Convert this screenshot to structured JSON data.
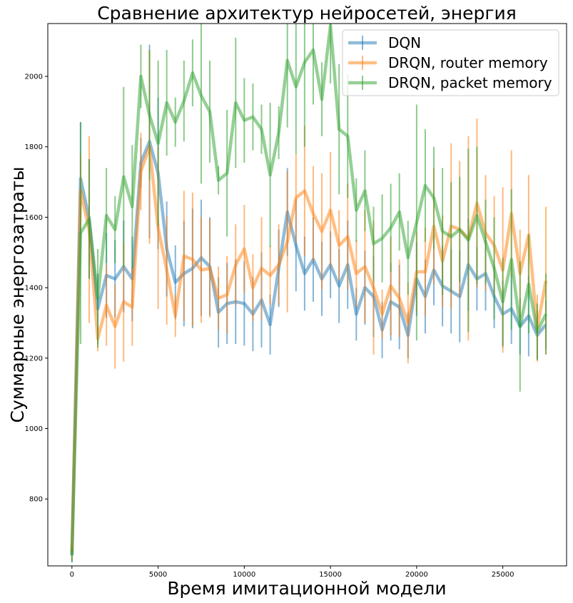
{
  "chart_data": {
    "type": "line",
    "title": "Сравнение архитектур нейросетей, энергия",
    "xlabel": "Время имитационной модели",
    "ylabel": "Суммарные энергозатраты",
    "xlim": [
      -1400,
      28700
    ],
    "ylim": [
      610,
      2150
    ],
    "xticks": [
      0,
      5000,
      10000,
      15000,
      20000,
      25000
    ],
    "yticks": [
      800,
      1000,
      1200,
      1400,
      1600,
      1800,
      2000
    ],
    "grid": false,
    "legend_position": "top-right",
    "x": [
      0,
      500,
      1000,
      1500,
      2000,
      2500,
      3000,
      3500,
      4000,
      4500,
      5000,
      5500,
      6000,
      6500,
      7000,
      7500,
      8000,
      8500,
      9000,
      9500,
      10000,
      10500,
      11000,
      11500,
      12000,
      12500,
      13000,
      13500,
      14000,
      14500,
      15000,
      15500,
      16000,
      16500,
      17000,
      17500,
      18000,
      18500,
      19000,
      19500,
      20000,
      20500,
      21000,
      21500,
      22000,
      22500,
      23000,
      23500,
      24000,
      24500,
      25000,
      25500,
      26000,
      26500,
      27000,
      27500
    ],
    "series": [
      {
        "name": "DQN",
        "color": "#1f77b4",
        "values": [
          640,
          1710,
          1595,
          1340,
          1435,
          1425,
          1460,
          1425,
          1755,
          1815,
          1725,
          1510,
          1415,
          1440,
          1455,
          1485,
          1460,
          1330,
          1355,
          1360,
          1355,
          1325,
          1365,
          1295,
          1455,
          1615,
          1520,
          1440,
          1480,
          1425,
          1465,
          1405,
          1465,
          1325,
          1400,
          1375,
          1280,
          1360,
          1345,
          1265,
          1425,
          1375,
          1450,
          1405,
          1390,
          1375,
          1465,
          1425,
          1440,
          1375,
          1325,
          1340,
          1290,
          1320,
          1265,
          1295
        ],
        "errors": [
          20,
          160,
          170,
          100,
          120,
          110,
          130,
          120,
          70,
          275,
          215,
          135,
          105,
          150,
          170,
          165,
          140,
          100,
          115,
          120,
          120,
          105,
          135,
          85,
          110,
          125,
          130,
          105,
          120,
          105,
          95,
          105,
          125,
          75,
          105,
          115,
          80,
          110,
          120,
          65,
          105,
          105,
          100,
          115,
          120,
          130,
          130,
          90,
          105,
          90,
          95,
          100,
          80,
          115,
          70,
          70
        ]
      },
      {
        "name": "DRQN, router memory",
        "color": "#ff7f0e",
        "values": [
          650,
          1675,
          1565,
          1255,
          1350,
          1290,
          1360,
          1345,
          1730,
          1800,
          1570,
          1450,
          1320,
          1490,
          1480,
          1450,
          1455,
          1370,
          1380,
          1465,
          1510,
          1400,
          1455,
          1435,
          1465,
          1530,
          1655,
          1675,
          1610,
          1560,
          1620,
          1520,
          1545,
          1440,
          1460,
          1400,
          1325,
          1405,
          1370,
          1300,
          1445,
          1445,
          1575,
          1475,
          1575,
          1565,
          1540,
          1640,
          1555,
          1520,
          1450,
          1610,
          1440,
          1550,
          1285,
          1420
        ],
        "errors": [
          25,
          105,
          265,
          35,
          115,
          120,
          170,
          110,
          110,
          275,
          230,
          155,
          60,
          185,
          190,
          150,
          140,
          90,
          110,
          115,
          125,
          95,
          145,
          85,
          115,
          200,
          125,
          185,
          135,
          165,
          165,
          100,
          150,
          95,
          160,
          190,
          70,
          140,
          110,
          115,
          115,
          125,
          165,
          130,
          235,
          195,
          290,
          240,
          165,
          140,
          235,
          180,
          125,
          170,
          95,
          210
        ]
      },
      {
        "name": "DRQN, packet memory",
        "color": "#2ca02c",
        "values": [
          640,
          1555,
          1595,
          1370,
          1605,
          1565,
          1715,
          1630,
          2000,
          1890,
          1810,
          1925,
          1870,
          1930,
          2010,
          1945,
          1900,
          1705,
          1725,
          1925,
          1875,
          1885,
          1850,
          1720,
          1840,
          2045,
          1970,
          2040,
          2075,
          1935,
          2145,
          1850,
          1830,
          1620,
          1675,
          1525,
          1540,
          1570,
          1615,
          1485,
          1585,
          1690,
          1655,
          1560,
          1545,
          1565,
          1535,
          1605,
          1530,
          1455,
          1360,
          1480,
          1290,
          1410,
          1275,
          1325
        ],
        "errors": [
          20,
          315,
          170,
          140,
          135,
          95,
          255,
          175,
          90,
          185,
          235,
          150,
          70,
          115,
          95,
          250,
          145,
          40,
          180,
          185,
          120,
          95,
          70,
          205,
          75,
          190,
          190,
          240,
          155,
          105,
          165,
          185,
          175,
          90,
          115,
          105,
          125,
          125,
          110,
          105,
          335,
          160,
          145,
          180,
          155,
          150,
          260,
          195,
          120,
          145,
          125,
          200,
          185,
          140,
          80,
          115
        ]
      }
    ]
  }
}
